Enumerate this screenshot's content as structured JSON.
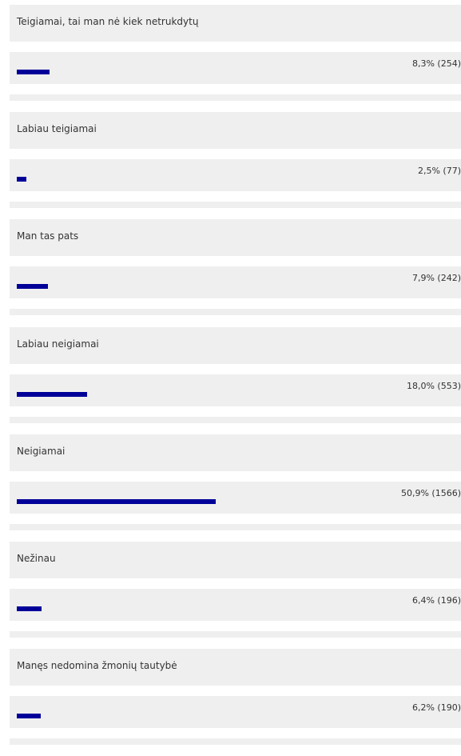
{
  "chart_data": {
    "type": "bar",
    "orientation": "horizontal",
    "max_percent_scale": 100,
    "options": [
      {
        "label": "Teigiamai, tai man nė kiek netrukdytų",
        "percent": 8.3,
        "votes": 254,
        "value_text": "8,3% (254)"
      },
      {
        "label": "Labiau teigiamai",
        "percent": 2.5,
        "votes": 77,
        "value_text": "2,5% (77)"
      },
      {
        "label": "Man tas pats",
        "percent": 7.9,
        "votes": 242,
        "value_text": "7,9% (242)"
      },
      {
        "label": "Labiau neigiamai",
        "percent": 18.0,
        "votes": 553,
        "value_text": "18,0% (553)"
      },
      {
        "label": "Neigiamai",
        "percent": 50.9,
        "votes": 1566,
        "value_text": "50,9% (1566)"
      },
      {
        "label": "Nežinau",
        "percent": 6.4,
        "votes": 196,
        "value_text": "6,4% (196)"
      },
      {
        "label": "Manęs nedomina žmonių tautybė",
        "percent": 6.2,
        "votes": 190,
        "value_text": "6,2% (190)"
      }
    ],
    "colors": {
      "bar": "#000099",
      "panel": "#efefef",
      "text": "#333333"
    }
  }
}
